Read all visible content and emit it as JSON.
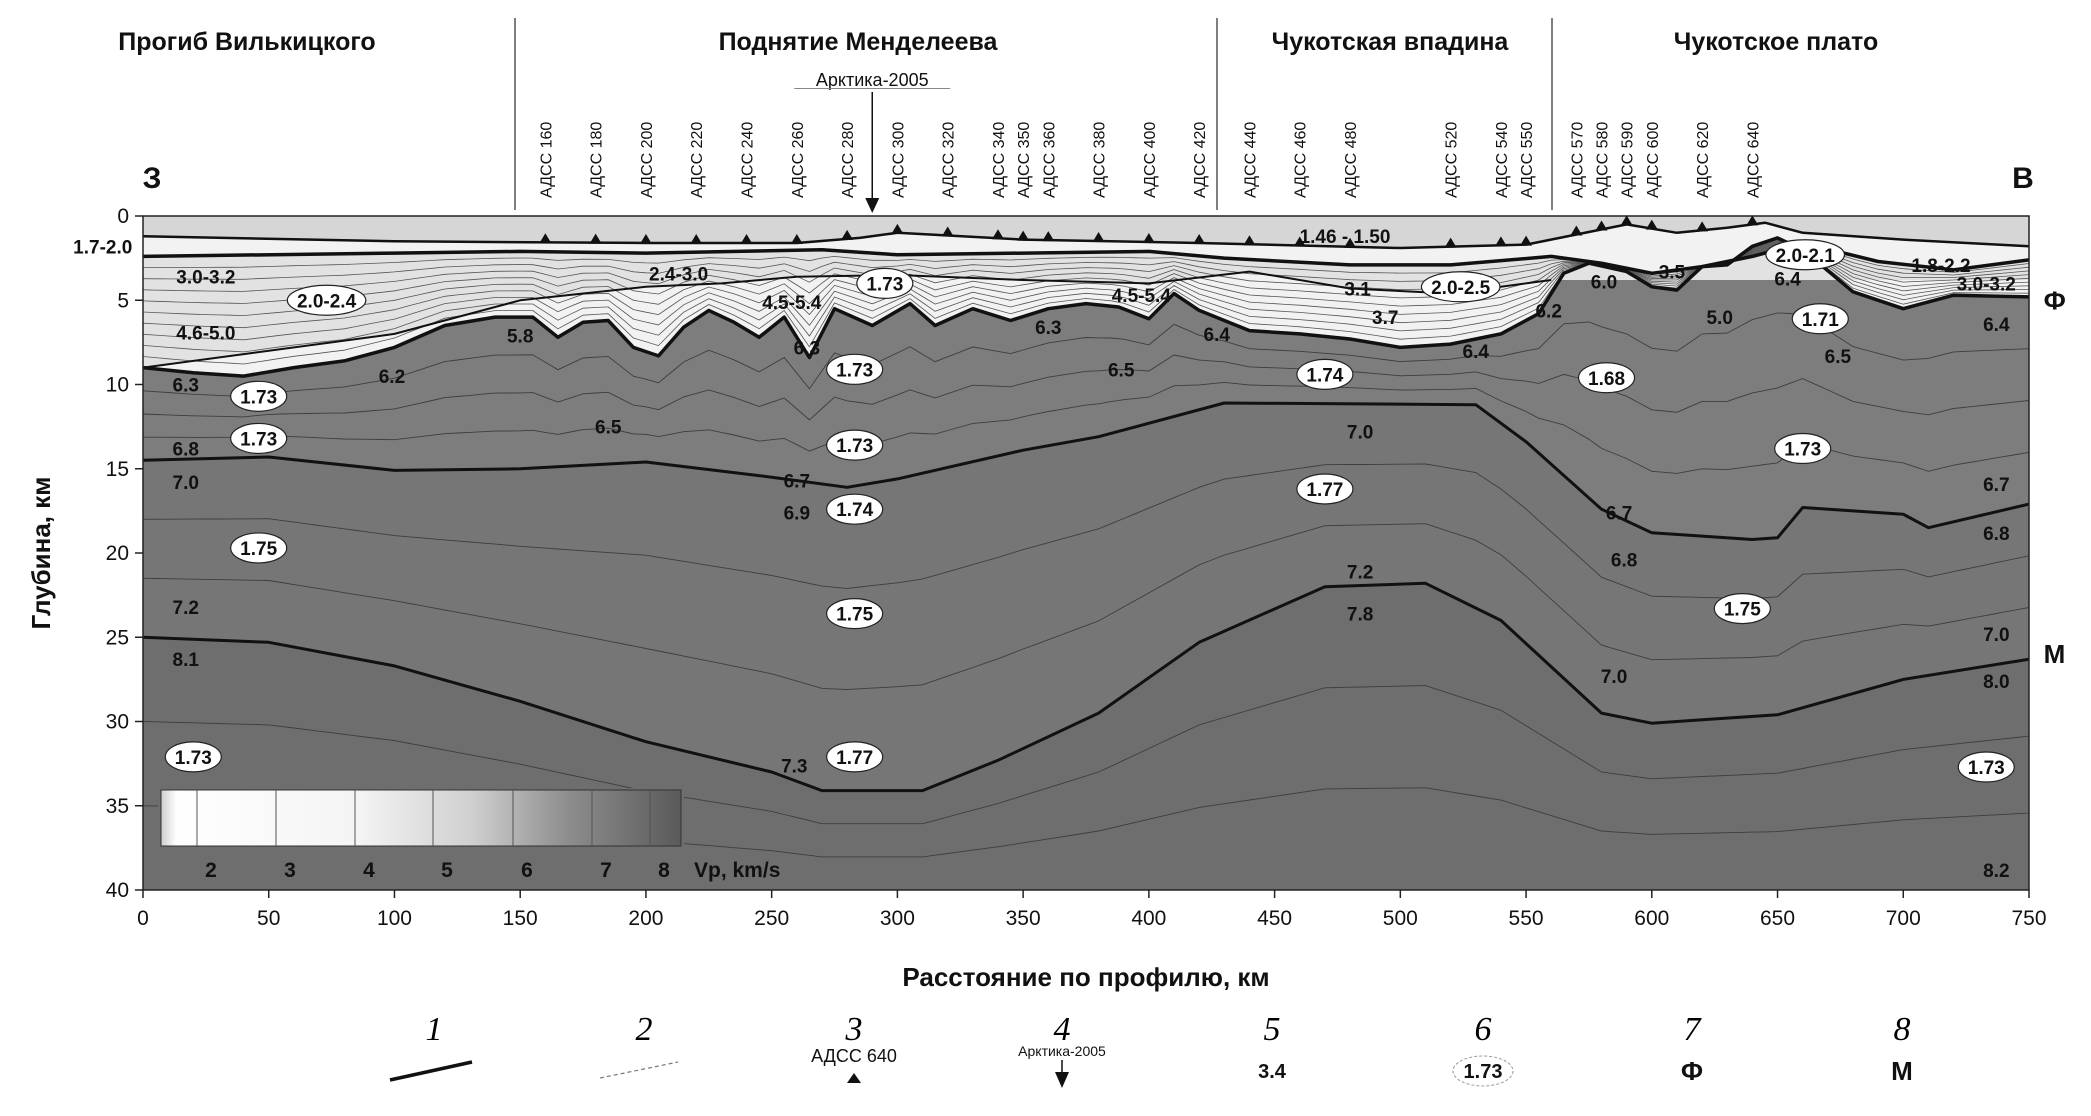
{
  "chart_data": {
    "type": "cross-section",
    "regions": [
      "Прогиб Вилькицкого",
      "Поднятие Менделеева",
      "Чукотская впадина",
      "Чукотское плато"
    ],
    "direction_labels": {
      "west": "З",
      "east": "В"
    },
    "xlabel": "Расстояние по профилю, км",
    "ylabel": "Глубина, км",
    "xlim": [
      0,
      750
    ],
    "ylim": [
      0,
      40
    ],
    "x_ticks": [
      "0",
      "50",
      "100",
      "150",
      "200",
      "250",
      "300",
      "350",
      "400",
      "450",
      "500",
      "550",
      "600",
      "650",
      "700",
      "750"
    ],
    "y_ticks": [
      "0",
      "5",
      "10",
      "15",
      "20",
      "25",
      "30",
      "35",
      "40"
    ],
    "stations": [
      {
        "label": "АДСС 160",
        "x": 160
      },
      {
        "label": "АДСС 180",
        "x": 180
      },
      {
        "label": "АДСС 200",
        "x": 200
      },
      {
        "label": "АДСС 220",
        "x": 220
      },
      {
        "label": "АДСС 240",
        "x": 240
      },
      {
        "label": "АДСС 260",
        "x": 260
      },
      {
        "label": "АДСС 280",
        "x": 280
      },
      {
        "label": "АДСС 300",
        "x": 300
      },
      {
        "label": "АДСС 320",
        "x": 320
      },
      {
        "label": "АДСС 340",
        "x": 340
      },
      {
        "label": "АДСС 350",
        "x": 350
      },
      {
        "label": "АДСС 360",
        "x": 360
      },
      {
        "label": "АДСС 380",
        "x": 380
      },
      {
        "label": "АДСС 400",
        "x": 400
      },
      {
        "label": "АДСС 420",
        "x": 420
      },
      {
        "label": "АДСС 440",
        "x": 440
      },
      {
        "label": "АДСС 460",
        "x": 460
      },
      {
        "label": "АДСС 480",
        "x": 480
      },
      {
        "label": "АДСС 520",
        "x": 520
      },
      {
        "label": "АДСС 540",
        "x": 540
      },
      {
        "label": "АДСС 550",
        "x": 550
      },
      {
        "label": "АДСС 570",
        "x": 570
      },
      {
        "label": "АДСС 580",
        "x": 580
      },
      {
        "label": "АДСС 590",
        "x": 590
      },
      {
        "label": "АДСС 600",
        "x": 600
      },
      {
        "label": "АДСС 620",
        "x": 620
      },
      {
        "label": "АДСС 640",
        "x": 640
      }
    ],
    "arktika_marker": {
      "label": "Арктика-2005",
      "x": 290
    },
    "boundaries": {
      "seafloor": [
        [
          0,
          1.2
        ],
        [
          100,
          1.5
        ],
        [
          200,
          1.6
        ],
        [
          260,
          1.6
        ],
        [
          285,
          1.3
        ],
        [
          300,
          1.0
        ],
        [
          350,
          1.4
        ],
        [
          420,
          1.6
        ],
        [
          500,
          1.9
        ],
        [
          550,
          1.7
        ],
        [
          570,
          1.1
        ],
        [
          590,
          0.5
        ],
        [
          610,
          1.0
        ],
        [
          630,
          0.7
        ],
        [
          645,
          0.4
        ],
        [
          660,
          1.0
        ],
        [
          700,
          1.4
        ],
        [
          750,
          1.8
        ]
      ],
      "layer_top": [
        [
          0,
          2.4
        ],
        [
          100,
          2.2
        ],
        [
          150,
          2.1
        ],
        [
          200,
          2.2
        ],
        [
          270,
          2.0
        ],
        [
          300,
          2.3
        ],
        [
          400,
          2.1
        ],
        [
          430,
          2.5
        ],
        [
          480,
          2.9
        ],
        [
          520,
          2.9
        ],
        [
          560,
          2.4
        ],
        [
          580,
          2.8
        ],
        [
          600,
          3.4
        ],
        [
          620,
          3.0
        ],
        [
          640,
          2.4
        ],
        [
          660,
          1.6
        ],
        [
          690,
          2.7
        ],
        [
          720,
          3.2
        ],
        [
          750,
          2.6
        ]
      ],
      "F_basement": [
        [
          0,
          9
        ],
        [
          20,
          9.3
        ],
        [
          40,
          9.5
        ],
        [
          60,
          9
        ],
        [
          80,
          8.6
        ],
        [
          100,
          7.8
        ],
        [
          120,
          6.5
        ],
        [
          140,
          6.0
        ],
        [
          155,
          6.0
        ],
        [
          165,
          7.2
        ],
        [
          175,
          6.3
        ],
        [
          185,
          6.2
        ],
        [
          195,
          7.8
        ],
        [
          205,
          8.3
        ],
        [
          215,
          6.6
        ],
        [
          225,
          5.6
        ],
        [
          235,
          6.3
        ],
        [
          245,
          7.2
        ],
        [
          255,
          6.0
        ],
        [
          265,
          8.4
        ],
        [
          275,
          5.5
        ],
        [
          290,
          6.5
        ],
        [
          305,
          5.2
        ],
        [
          315,
          6.5
        ],
        [
          330,
          5.5
        ],
        [
          345,
          6.2
        ],
        [
          360,
          5.5
        ],
        [
          375,
          5.2
        ],
        [
          388,
          5.4
        ],
        [
          400,
          6.1
        ],
        [
          410,
          4.6
        ],
        [
          420,
          5.6
        ],
        [
          430,
          6.2
        ],
        [
          440,
          6.8
        ],
        [
          460,
          7.0
        ],
        [
          480,
          7.3
        ],
        [
          500,
          7.8
        ],
        [
          520,
          7.6
        ],
        [
          540,
          7.0
        ],
        [
          555,
          5.8
        ],
        [
          565,
          3.4
        ],
        [
          575,
          2.8
        ],
        [
          590,
          3.3
        ],
        [
          600,
          4.2
        ],
        [
          610,
          4.4
        ],
        [
          620,
          3.0
        ],
        [
          630,
          2.9
        ],
        [
          640,
          1.8
        ],
        [
          650,
          1.3
        ],
        [
          660,
          2.0
        ],
        [
          680,
          4.5
        ],
        [
          700,
          5.5
        ],
        [
          720,
          4.7
        ],
        [
          750,
          4.8
        ]
      ],
      "F2": [
        [
          0,
          9
        ],
        [
          100,
          7.0
        ],
        [
          150,
          5.0
        ],
        [
          200,
          4.2
        ],
        [
          230,
          4.0
        ],
        [
          260,
          3.6
        ],
        [
          300,
          3.5
        ],
        [
          350,
          3.8
        ],
        [
          400,
          4.0
        ],
        [
          440,
          3.3
        ],
        [
          480,
          4.3
        ],
        [
          520,
          4.6
        ],
        [
          560,
          3.8
        ]
      ],
      "crust_boundary": [
        [
          0,
          14.5
        ],
        [
          50,
          14.3
        ],
        [
          100,
          15.1
        ],
        [
          150,
          15.0
        ],
        [
          200,
          14.6
        ],
        [
          250,
          15.5
        ],
        [
          280,
          16.1
        ],
        [
          300,
          15.6
        ],
        [
          350,
          13.9
        ],
        [
          380,
          13.1
        ],
        [
          430,
          11.1
        ],
        [
          530,
          11.2
        ],
        [
          550,
          13.4
        ],
        [
          580,
          17.4
        ],
        [
          600,
          18.8
        ],
        [
          640,
          19.2
        ],
        [
          650,
          19.1
        ],
        [
          660,
          17.3
        ],
        [
          700,
          17.7
        ],
        [
          710,
          18.5
        ],
        [
          750,
          17.1
        ]
      ],
      "deep_boundary": [
        [
          0,
          25.0
        ],
        [
          50,
          25.3
        ],
        [
          100,
          26.7
        ],
        [
          150,
          28.8
        ],
        [
          200,
          31.2
        ],
        [
          250,
          33.0
        ],
        [
          270,
          34.1
        ],
        [
          310,
          34.1
        ],
        [
          340,
          32.3
        ],
        [
          380,
          29.5
        ],
        [
          420,
          25.3
        ],
        [
          470,
          22.0
        ],
        [
          510,
          21.8
        ],
        [
          540,
          24.0
        ],
        [
          580,
          29.5
        ],
        [
          600,
          30.1
        ],
        [
          620,
          29.9
        ],
        [
          650,
          29.6
        ],
        [
          700,
          27.5
        ],
        [
          750,
          26.3
        ]
      ]
    },
    "velocity_labels": [
      {
        "text": "1.46 - 1.50",
        "x": 478,
        "y": 1.2
      },
      {
        "text": "1.7-2.0",
        "x": -16,
        "y": 1.8
      },
      {
        "text": "3.0-3.2",
        "x": 25,
        "y": 3.6
      },
      {
        "text": "4.6-5.0",
        "x": 25,
        "y": 6.9
      },
      {
        "text": "2.4-3.0",
        "x": 213,
        "y": 3.4
      },
      {
        "text": "4.5-5.4",
        "x": 258,
        "y": 5.1
      },
      {
        "text": "4.5-5.4",
        "x": 397,
        "y": 4.7
      },
      {
        "text": "3.1",
        "x": 483,
        "y": 4.3
      },
      {
        "text": "3.7",
        "x": 494,
        "y": 6.0
      },
      {
        "text": "6.0",
        "x": 581,
        "y": 3.9
      },
      {
        "text": "3.5",
        "x": 608,
        "y": 3.3
      },
      {
        "text": "5.0",
        "x": 627,
        "y": 6.0
      },
      {
        "text": "6.4",
        "x": 654,
        "y": 3.7
      },
      {
        "text": "1.8-2.2",
        "x": 715,
        "y": 2.9
      },
      {
        "text": "3.0-3.2",
        "x": 733,
        "y": 4.0
      },
      {
        "text": "5.8",
        "x": 150,
        "y": 7.1
      },
      {
        "text": "6.2",
        "x": 99,
        "y": 9.5
      },
      {
        "text": "6.3",
        "x": 17,
        "y": 10.0
      },
      {
        "text": "6.3",
        "x": 264,
        "y": 7.8
      },
      {
        "text": "6.3",
        "x": 360,
        "y": 6.6
      },
      {
        "text": "6.4",
        "x": 427,
        "y": 7.0
      },
      {
        "text": "6.2",
        "x": 559,
        "y": 5.6
      },
      {
        "text": "6.4",
        "x": 530,
        "y": 8.0
      },
      {
        "text": "6.5",
        "x": 185,
        "y": 12.5
      },
      {
        "text": "6.5",
        "x": 389,
        "y": 9.1
      },
      {
        "text": "6.5",
        "x": 674,
        "y": 8.3
      },
      {
        "text": "6.4",
        "x": 737,
        "y": 6.4
      },
      {
        "text": "6.8",
        "x": 17,
        "y": 13.8
      },
      {
        "text": "7.0",
        "x": 17,
        "y": 15.8
      },
      {
        "text": "7.0",
        "x": 484,
        "y": 12.8
      },
      {
        "text": "6.7",
        "x": 260,
        "y": 15.7
      },
      {
        "text": "6.9",
        "x": 260,
        "y": 17.6
      },
      {
        "text": "6.7",
        "x": 587,
        "y": 17.6
      },
      {
        "text": "6.8",
        "x": 589,
        "y": 20.4
      },
      {
        "text": "6.7",
        "x": 737,
        "y": 15.9
      },
      {
        "text": "6.8",
        "x": 737,
        "y": 18.8
      },
      {
        "text": "7.2",
        "x": 17,
        "y": 23.2
      },
      {
        "text": "8.1",
        "x": 17,
        "y": 26.3
      },
      {
        "text": "7.2",
        "x": 484,
        "y": 21.1
      },
      {
        "text": "7.8",
        "x": 484,
        "y": 23.6
      },
      {
        "text": "7.0",
        "x": 585,
        "y": 27.3
      },
      {
        "text": "7.0",
        "x": 737,
        "y": 24.8
      },
      {
        "text": "8.0",
        "x": 737,
        "y": 27.6
      },
      {
        "text": "7.3",
        "x": 259,
        "y": 32.6
      },
      {
        "text": "8.2",
        "x": 737,
        "y": 38.8
      }
    ],
    "density_labels": [
      {
        "text": "2.0-2.4",
        "x": 73,
        "y": 5.0
      },
      {
        "text": "1.73",
        "x": 295,
        "y": 4.0
      },
      {
        "text": "2.0-2.5",
        "x": 524,
        "y": 4.2
      },
      {
        "text": "2.0-2.1",
        "x": 661,
        "y": 2.3
      },
      {
        "text": "1.71",
        "x": 667,
        "y": 6.1
      },
      {
        "text": "1.73",
        "x": 46,
        "y": 10.7
      },
      {
        "text": "1.73",
        "x": 46,
        "y": 13.2
      },
      {
        "text": "1.73",
        "x": 283,
        "y": 9.1
      },
      {
        "text": "1.74",
        "x": 470,
        "y": 9.4
      },
      {
        "text": "1.68",
        "x": 582,
        "y": 9.6
      },
      {
        "text": "1.73",
        "x": 283,
        "y": 13.6
      },
      {
        "text": "1.73",
        "x": 660,
        "y": 13.8
      },
      {
        "text": "1.74",
        "x": 283,
        "y": 17.4
      },
      {
        "text": "1.77",
        "x": 470,
        "y": 16.2
      },
      {
        "text": "1.75",
        "x": 46,
        "y": 19.7
      },
      {
        "text": "1.75",
        "x": 283,
        "y": 23.6
      },
      {
        "text": "1.75",
        "x": 636,
        "y": 23.3
      },
      {
        "text": "1.73",
        "x": 20,
        "y": 32.1
      },
      {
        "text": "1.77",
        "x": 283,
        "y": 32.1
      },
      {
        "text": "1.73",
        "x": 733,
        "y": 32.7
      }
    ],
    "horizon_labels": [
      {
        "text": "Ф",
        "x": 755,
        "y": 5.0
      },
      {
        "text": "М",
        "x": 755,
        "y": 26.0
      }
    ],
    "colorbar": {
      "ticks": [
        "2",
        "3",
        "4",
        "5",
        "6",
        "7",
        "8"
      ],
      "label": "Vp, km/s"
    },
    "legend": [
      {
        "number": "1",
        "type": "thick-line"
      },
      {
        "number": "2",
        "type": "thin-dashed-line"
      },
      {
        "number": "3",
        "type": "station",
        "text": "АДСС 640"
      },
      {
        "number": "4",
        "type": "arrow",
        "text": "Арктика-2005"
      },
      {
        "number": "5",
        "type": "velocity",
        "text": "3.4"
      },
      {
        "number": "6",
        "type": "density",
        "text": "1.73"
      },
      {
        "number": "7",
        "type": "horizon",
        "text": "Ф"
      },
      {
        "number": "8",
        "type": "horizon",
        "text": "М"
      }
    ]
  },
  "colors": {
    "water": "#d6d6d6",
    "sediment": "#f2f2f2",
    "basement": "#7d7d7d",
    "upper_crust": "#6a6a6a",
    "lower_crust": "#767676",
    "mantle": "#6e6e6e",
    "line": "#111111"
  }
}
